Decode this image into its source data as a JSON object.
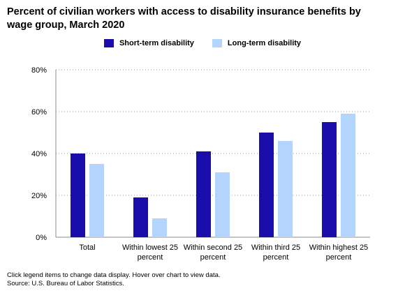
{
  "chart_data": {
    "type": "bar",
    "title": "Percent of civilian workers with access to disability insurance benefits by wage group, March 2020",
    "xlabel": "",
    "ylabel": "",
    "categories": [
      [
        "Total"
      ],
      [
        "Within lowest 25",
        "percent"
      ],
      [
        "Within second 25",
        "percent"
      ],
      [
        "Within third 25",
        "percent"
      ],
      [
        "Within highest 25",
        "percent"
      ]
    ],
    "series": [
      {
        "name": "Short-term disability",
        "color": "#1a0dab",
        "values": [
          40,
          19,
          41,
          50,
          55
        ]
      },
      {
        "name": "Long-term disability",
        "color": "#b3d4fc",
        "values": [
          35,
          9,
          31,
          46,
          59
        ]
      }
    ],
    "ylim": [
      0,
      80
    ],
    "yticks": [
      0,
      20,
      40,
      60,
      80
    ],
    "ytick_suffix": "%",
    "grid": true,
    "legend_position": "top-center"
  },
  "footer": {
    "note": "Click legend items to change data display. Hover over chart to view data.",
    "source": "Source: U.S. Bureau of Labor Statistics."
  }
}
